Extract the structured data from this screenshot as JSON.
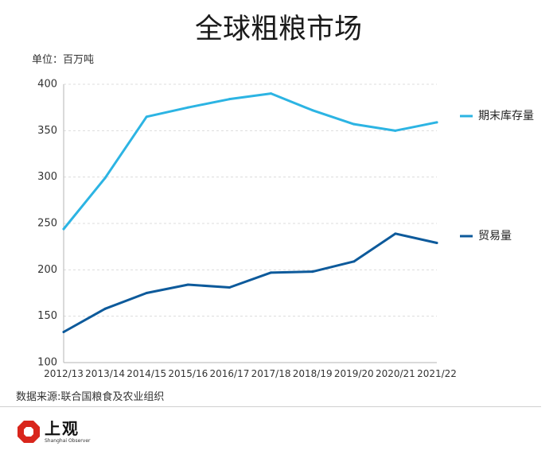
{
  "chart_data": {
    "type": "line",
    "title": "全球粗粮市场",
    "unit_label": "单位：百万吨",
    "categories": [
      "2012/13",
      "2013/14",
      "2014/15",
      "2015/16",
      "2016/17",
      "2017/18",
      "2018/19",
      "2019/20",
      "2020/21",
      "2021/22"
    ],
    "series": [
      {
        "name": "期末库存量",
        "color": "#2cb4e3",
        "values": [
          244,
          299,
          365,
          375,
          384,
          390,
          372,
          357,
          350,
          359
        ]
      },
      {
        "name": "贸易量",
        "color": "#0d5a9b",
        "values": [
          133,
          158,
          175,
          184,
          181,
          197,
          198,
          209,
          239,
          229
        ]
      }
    ],
    "yticks": [
      100,
      150,
      200,
      250,
      300,
      350,
      400
    ],
    "ylim": [
      100,
      400
    ],
    "grid": true,
    "legend_position": "right"
  },
  "source": "数据来源:联合国粮食及农业组织",
  "logo": {
    "name": "上观",
    "subtitle": "Shanghai Observer",
    "color": "#d9261c"
  }
}
